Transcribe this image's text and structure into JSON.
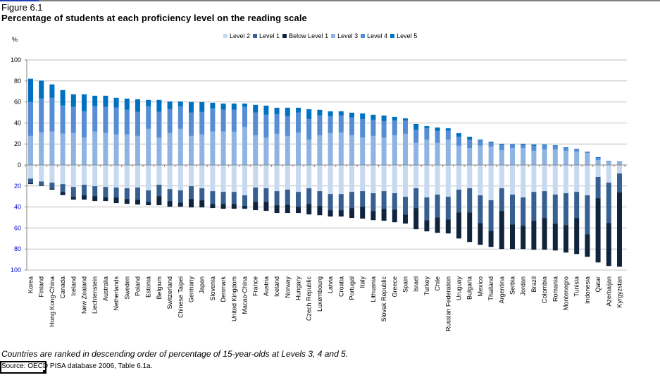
{
  "figure_label": "Figure 6.1",
  "title": "Percentage of students at each proficiency level on the reading scale",
  "unit_label": "%",
  "note": "Countries are ranked in descending order of percentage of 15-year-olds at Levels 3, 4 and 5.",
  "source": "Source: OECD PISA database 2006, Table 6.1a.",
  "legend": [
    {
      "name": "Level 2",
      "color": "#c6d9f1"
    },
    {
      "name": "Level 1",
      "color": "#366092"
    },
    {
      "name": "Below Level 1",
      "color": "#10243e"
    },
    {
      "name": "Level 3",
      "color": "#8eb4e3"
    },
    {
      "name": "Level 4",
      "color": "#558ed5"
    },
    {
      "name": "Level 5",
      "color": "#0070c0"
    }
  ],
  "chart_data": {
    "type": "bar",
    "stacked": "diverging",
    "title": "Percentage of students at each proficiency level on the reading scale",
    "xlabel": "",
    "ylabel": "%",
    "ylim": [
      -100,
      100
    ],
    "yticks": [
      100,
      80,
      60,
      40,
      20,
      0,
      20,
      40,
      60,
      80,
      100
    ],
    "ytick_values": [
      100,
      80,
      60,
      40,
      20,
      0,
      -20,
      -40,
      -60,
      -80,
      -100
    ],
    "grid": true,
    "legend_position": "top-right",
    "categories": [
      "Korea",
      "Finland",
      "Hong Kong-China",
      "Canada",
      "Ireland",
      "New Zealand",
      "Liechtenstein",
      "Australia",
      "Netherlands",
      "Sweden",
      "Poland",
      "Estonia",
      "Belgium",
      "Switzerland",
      "Chinese Taipei",
      "Germany",
      "Japan",
      "Slovenia",
      "Denmark",
      "United Kingdom",
      "Macao-China",
      "France",
      "Austria",
      "Iceland",
      "Norway",
      "Hungary",
      "Czech Republic",
      "Luxembourg",
      "Latvia",
      "Croatia",
      "Portugal",
      "Italy",
      "Lithuania",
      "Slovak Republic",
      "Greece",
      "Spain",
      "Israel",
      "Turkey",
      "Chile",
      "Russian Federation",
      "Uruguay",
      "Bulgaria",
      "Mexico",
      "Thailand",
      "Argentina",
      "Serbia",
      "Jordan",
      "Brazil",
      "Colombia",
      "Romania",
      "Montenegro",
      "Tunisia",
      "Indonesia",
      "Qatar",
      "Azerbaijan",
      "Kyrgyzstan"
    ],
    "series": [
      {
        "name": "Level 3",
        "direction": "up",
        "color": "#8eb4e3",
        "values": [
          27.6,
          31.2,
          31.8,
          29.8,
          30.5,
          26.2,
          31.8,
          30.5,
          29.1,
          29.1,
          27.6,
          34.3,
          26.2,
          30.5,
          34.3,
          27.6,
          29.1,
          31.8,
          31.8,
          31.6,
          36.3,
          28.3,
          26.2,
          29.6,
          27.6,
          30.9,
          24.2,
          28.3,
          30.3,
          30.9,
          28.3,
          26.2,
          27.6,
          26.2,
          28.3,
          29.6,
          20.9,
          24.2,
          20.9,
          24.2,
          18.2,
          16.1,
          18.2,
          17.5,
          14.1,
          16.1,
          16.1,
          13.5,
          14.8,
          14.8,
          13.5,
          12.8,
          11.4,
          4.7,
          3.4,
          2.7
        ]
      },
      {
        "name": "Level 4",
        "direction": "up",
        "color": "#558ed5",
        "values": [
          32.3,
          32.0,
          32.1,
          26.7,
          24.9,
          25.1,
          24.3,
          24.9,
          25.6,
          23.4,
          23.1,
          21.5,
          24.5,
          22.6,
          21.5,
          22.2,
          21.3,
          22.0,
          20.7,
          20.9,
          18.9,
          21.5,
          21.6,
          18.8,
          18.8,
          18.9,
          19.5,
          18.8,
          16.1,
          16.2,
          16.8,
          17.5,
          15.4,
          15.5,
          14.1,
          12.8,
          12.7,
          10.8,
          11.4,
          8.7,
          8.7,
          8.1,
          5.3,
          4.0,
          5.4,
          4.1,
          3.4,
          4.7,
          4.0,
          3.4,
          2.6,
          2.7,
          1.4,
          2.0,
          0.6,
          0.7
        ]
      },
      {
        "name": "Level 5",
        "direction": "up",
        "color": "#0070c0",
        "values": [
          22.2,
          17.1,
          12.8,
          14.8,
          11.9,
          16.0,
          9.8,
          10.5,
          9.2,
          10.7,
          11.9,
          6.1,
          11.2,
          7.4,
          4.7,
          10.1,
          9.5,
          5.4,
          6.0,
          6.0,
          3.3,
          7.4,
          8.7,
          6.1,
          8.1,
          4.7,
          9.4,
          5.4,
          4.7,
          4.0,
          4.7,
          5.4,
          4.8,
          5.4,
          3.3,
          2.0,
          5.4,
          2.0,
          3.4,
          2.1,
          3.4,
          2.7,
          0.7,
          0.7,
          0.7,
          0.0,
          0.7,
          1.3,
          0.7,
          0.6,
          0.7,
          0.0,
          0.0,
          0.7,
          0.0,
          0.0
        ]
      },
      {
        "name": "Level 2",
        "direction": "down",
        "color": "#c6d9f1",
        "values": [
          13.0,
          15.7,
          16.8,
          18.2,
          20.9,
          18.8,
          20.2,
          20.9,
          21.5,
          22.2,
          21.5,
          24.2,
          18.8,
          22.9,
          24.2,
          20.2,
          22.2,
          24.9,
          25.6,
          25.6,
          28.9,
          21.5,
          22.2,
          24.9,
          23.5,
          25.6,
          22.2,
          24.9,
          27.6,
          27.6,
          25.6,
          24.9,
          26.9,
          24.9,
          26.9,
          30.3,
          22.2,
          30.9,
          28.2,
          30.3,
          23.5,
          22.2,
          28.9,
          33.6,
          22.2,
          28.2,
          30.9,
          25.6,
          24.9,
          28.2,
          26.9,
          25.6,
          28.9,
          11.4,
          16.8,
          8.1
        ]
      },
      {
        "name": "Level 1",
        "direction": "down",
        "color": "#366092",
        "values": [
          4.0,
          3.8,
          5.6,
          7.4,
          9.4,
          10.1,
          9.4,
          10.0,
          9.4,
          10.1,
          11.5,
          10.8,
          10.8,
          11.4,
          11.5,
          12.1,
          11.4,
          12.1,
          11.4,
          11.4,
          10.1,
          13.5,
          12.8,
          13.4,
          14.2,
          14.1,
          14.8,
          14.1,
          15.4,
          15.4,
          15.4,
          14.8,
          16.8,
          16.8,
          15.5,
          16.8,
          18.8,
          21.6,
          21.6,
          21.5,
          21.6,
          22.9,
          26.3,
          29.0,
          21.5,
          28.3,
          26.9,
          27.5,
          25.5,
          27.6,
          30.3,
          24.8,
          37.0,
          20.2,
          38.4,
          18.1
        ]
      },
      {
        "name": "Below Level 1",
        "direction": "down",
        "color": "#10243e",
        "values": [
          1.2,
          0.5,
          1.1,
          3.1,
          2.7,
          4.1,
          4.7,
          3.4,
          5.4,
          4.7,
          4.7,
          3.3,
          8.7,
          5.4,
          4.0,
          8.1,
          6.8,
          4.0,
          4.7,
          4.7,
          2.7,
          8.0,
          8.7,
          7.4,
          8.0,
          6.0,
          10.1,
          8.8,
          6.1,
          6.1,
          9.4,
          11.4,
          8.8,
          11.4,
          12.1,
          8.7,
          20.2,
          10.7,
          14.8,
          13.4,
          24.9,
          28.2,
          20.8,
          15.4,
          36.3,
          23.5,
          22.2,
          27.6,
          30.3,
          25.6,
          26.2,
          34.4,
          21.5,
          61.2,
          41.0,
          70.7
        ]
      }
    ]
  }
}
